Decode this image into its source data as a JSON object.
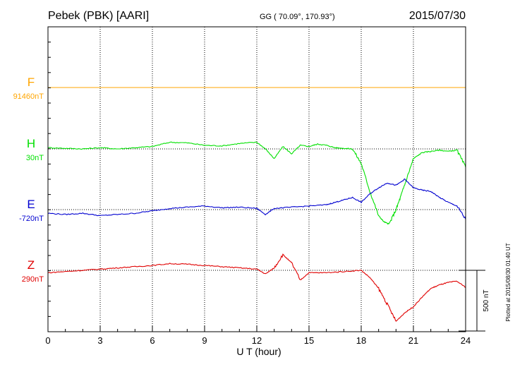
{
  "chart_data": {
    "type": "line",
    "title": "Pebek (PBK)  [AARI]",
    "coords": "GG ( 70.09°, 170.93°)",
    "date": "2015/07/30",
    "xlabel": "U T (hour)",
    "xlim": [
      0,
      24
    ],
    "xticks": [
      "0",
      "3",
      "6",
      "9",
      "12",
      "15",
      "18",
      "21",
      "24"
    ],
    "grid": true,
    "scale_bar_label": "500 nT",
    "scale_bar_nT": 500,
    "plotted_note": "Plotted at 2015/08/30 01:40 UT",
    "series": [
      {
        "name": "F",
        "baseline_label": "91460nT",
        "color": "#ffa500",
        "x": [
          0,
          6,
          12,
          18,
          24
        ],
        "values": [
          0,
          0,
          0,
          0,
          0
        ]
      },
      {
        "name": "H",
        "baseline_label": "30nT",
        "color": "#00e000",
        "x": [
          0,
          1,
          2,
          3,
          4,
          5,
          6,
          7,
          8,
          9,
          10,
          11,
          12,
          12.5,
          13,
          13.5,
          14,
          14.5,
          15,
          15.5,
          16,
          16.5,
          17,
          17.5,
          18,
          18.5,
          19,
          19.3,
          19.6,
          20,
          20.3,
          20.6,
          21,
          21.5,
          22,
          22.5,
          23,
          23.5,
          24
        ],
        "values": [
          10,
          5,
          0,
          10,
          0,
          10,
          20,
          55,
          50,
          30,
          25,
          45,
          55,
          0,
          -80,
          20,
          -40,
          30,
          20,
          40,
          30,
          10,
          5,
          0,
          -120,
          -350,
          -550,
          -600,
          -620,
          -500,
          -380,
          -250,
          -80,
          -30,
          -20,
          -10,
          -20,
          -10,
          -150
        ]
      },
      {
        "name": "E",
        "baseline_label": "-720nT",
        "color": "#0000d0",
        "x": [
          0,
          1,
          2,
          3,
          4,
          5,
          6,
          7,
          8,
          9,
          10,
          11,
          12,
          12.5,
          13,
          14,
          15,
          16,
          16.5,
          17,
          17.5,
          18,
          18.5,
          19,
          19.5,
          20,
          20.5,
          21,
          21.5,
          22,
          22.5,
          23,
          23.5,
          24
        ],
        "values": [
          -30,
          -40,
          -30,
          -50,
          -40,
          -30,
          -10,
          10,
          20,
          30,
          15,
          20,
          10,
          -40,
          10,
          20,
          30,
          40,
          60,
          80,
          100,
          60,
          130,
          180,
          220,
          200,
          250,
          180,
          160,
          150,
          100,
          60,
          30,
          -80
        ]
      },
      {
        "name": "Z",
        "baseline_label": "290nT",
        "color": "#e00000",
        "x": [
          0,
          1,
          2,
          3,
          4,
          5,
          6,
          7,
          8,
          9,
          10,
          11,
          12,
          12.5,
          13,
          13.5,
          14,
          14.5,
          15,
          16,
          17,
          18,
          18.5,
          19,
          19.5,
          20,
          20.5,
          21,
          21.5,
          22,
          22.5,
          23,
          23.5,
          24
        ],
        "values": [
          -20,
          -10,
          0,
          10,
          20,
          30,
          40,
          55,
          50,
          40,
          30,
          20,
          10,
          -30,
          20,
          130,
          60,
          -80,
          -20,
          -20,
          -10,
          0,
          -60,
          -150,
          -280,
          -420,
          -350,
          -300,
          -220,
          -150,
          -120,
          -100,
          -90,
          -140
        ]
      }
    ]
  }
}
